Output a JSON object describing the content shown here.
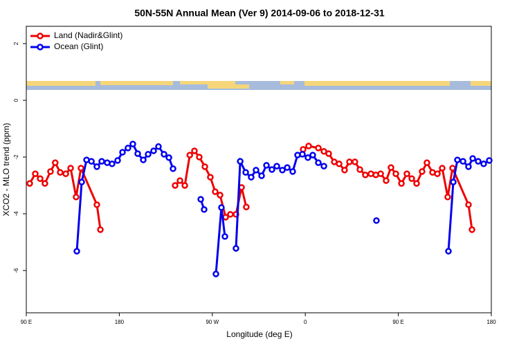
{
  "chart_data": {
    "type": "line",
    "title": "50N-55N Annual Mean (Ver 9)   2014-09-06 to 2018-12-31",
    "x_label": "Longitude (deg E)",
    "y_label": "XCO2 - MLO trend (ppm)",
    "xlim": [
      90,
      540
    ],
    "xticks": [
      {
        "value": 90,
        "label": "90 E"
      },
      180,
      {
        "value": 270,
        "label": "90 W"
      },
      {
        "value": 360,
        "label": "0"
      },
      {
        "value": 450,
        "label": "90 E"
      },
      {
        "value": 540,
        "label": "180"
      }
    ],
    "ylim": [
      -7.49,
      2.61
    ],
    "yticks": [
      2,
      0,
      -2,
      -4,
      -6
    ],
    "legend": "top-left",
    "series": [
      {
        "name": "Land (Nadir&Glint)",
        "color": "#ee0000",
        "x": [
          93.3,
          98.7,
          103.4,
          108,
          113.4,
          118,
          122.8,
          128.2,
          132.9,
          138.2,
          142.9,
          158.3,
          161.7,
          null,
          234,
          238.7,
          243.4,
          248.2,
          252.7,
          257.4,
          262.8,
          268.1,
          272.8,
          277.5,
          282.9,
          287.5,
          292.9,
          298.3,
          302.9,
          null,
          357.9,
          363.2,
          372.6,
          378,
          382.6,
          388,
          392.7,
          398,
          402.7,
          408,
          412.8,
          418.1,
          423.5,
          428.2,
          432.9,
          438.2,
          442.9,
          447.6,
          453,
          458.3,
          463,
          467.7,
          473,
          477.7,
          483.1,
          487.8,
          492.5,
          497.8,
          502.5,
          517.9,
          521.3
        ],
        "values": [
          -2.93,
          -2.59,
          -2.76,
          -2.93,
          -2.51,
          -2.2,
          -2.54,
          -2.59,
          -2.39,
          -3.41,
          -2.39,
          -3.68,
          -4.56,
          null,
          -3.0,
          -2.83,
          -3.0,
          -1.93,
          -1.78,
          -2.0,
          -2.34,
          -2.71,
          -3.22,
          -3.34,
          -4.12,
          -4.02,
          -4.02,
          -3.07,
          -3.76,
          null,
          -1.73,
          -1.61,
          -1.68,
          -1.8,
          -1.88,
          -2.17,
          -2.24,
          -2.46,
          -2.17,
          -2.17,
          -2.44,
          -2.63,
          -2.59,
          -2.63,
          -2.59,
          -2.83,
          -2.37,
          -2.59,
          -2.93,
          -2.59,
          -2.76,
          -2.93,
          -2.51,
          -2.2,
          -2.54,
          -2.59,
          -2.39,
          -3.41,
          -2.39,
          -3.68,
          -4.56
        ]
      },
      {
        "name": "Ocean (Glint)",
        "color": "#0000ee",
        "x": [
          138.9,
          143.6,
          148.3,
          153,
          158.3,
          163,
          168.3,
          173,
          178.4,
          183.1,
          188.4,
          193.1,
          197.8,
          203.2,
          207.9,
          213.2,
          217.9,
          223.3,
          228,
          232,
          null,
          258.8,
          262.1,
          null,
          273.5,
          278.8,
          282.2,
          null,
          292.9,
          297,
          302.3,
          307.6,
          312.3,
          317.7,
          322.4,
          327.7,
          332.4,
          337.8,
          342.5,
          347.8,
          352.5,
          357.2,
          362.5,
          367.2,
          372.6,
          378,
          null,
          428.8,
          null,
          498.5,
          503.2,
          507.2,
          512.6,
          517.9,
          522,
          527.3,
          532.6,
          538
        ],
        "values": [
          -5.32,
          -2.88,
          -2.1,
          -2.15,
          -2.34,
          -2.15,
          -2.2,
          -2.24,
          -2.12,
          -1.83,
          -1.68,
          -1.54,
          -1.88,
          -2.1,
          -1.9,
          -1.78,
          -1.63,
          -1.9,
          -2.02,
          -2.41,
          null,
          -3.49,
          -3.85,
          null,
          -6.12,
          -3.78,
          -4.8,
          null,
          -5.22,
          -2.15,
          -2.54,
          -2.71,
          -2.46,
          -2.66,
          -2.29,
          -2.44,
          -2.32,
          -2.46,
          -2.37,
          -2.51,
          -1.93,
          -1.9,
          -2.02,
          -1.93,
          -2.2,
          -2.32,
          null,
          -4.24,
          null,
          -5.32,
          -2.88,
          -2.1,
          -2.15,
          -2.34,
          -2.05,
          -2.15,
          -2.24,
          -2.12
        ]
      }
    ]
  }
}
